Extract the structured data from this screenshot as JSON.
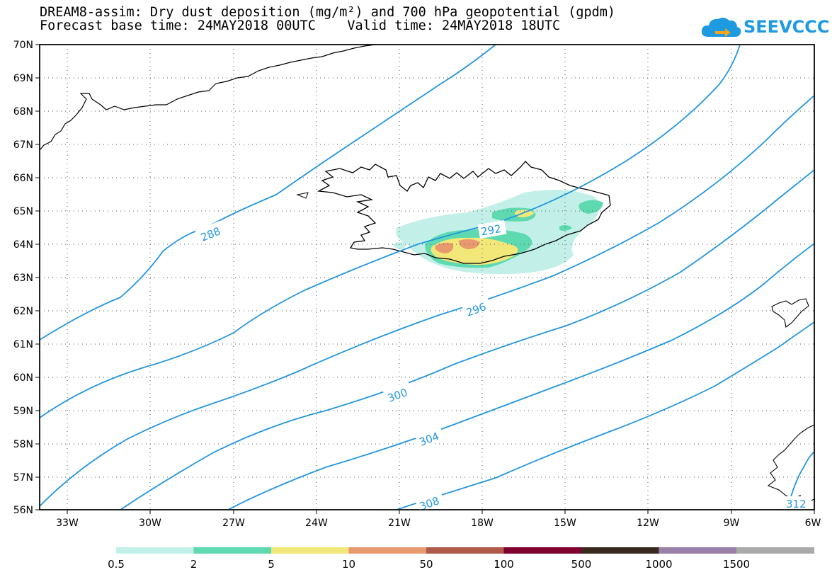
{
  "title_line1": "DREAM8-assim: Dry dust deposition (mg/m²) and 700 hPa geopotential (gpdm)",
  "title_line2": "Forecast base time: 24MAY2018 00UTC    Valid time: 24MAY2018 18UTC",
  "logo_text": "SEEVCCC",
  "logo_icon": "cloud-arrow-icon",
  "colors": {
    "contour": "#2296e0",
    "coast": "#000000",
    "grid": "#555555"
  },
  "lat_labels": [
    "70N",
    "69N",
    "68N",
    "67N",
    "66N",
    "65N",
    "64N",
    "63N",
    "62N",
    "61N",
    "60N",
    "59N",
    "58N",
    "57N",
    "56N"
  ],
  "lon_labels": [
    "33W",
    "30W",
    "27W",
    "24W",
    "21W",
    "18W",
    "15W",
    "12W",
    "9W",
    "6W"
  ],
  "contour_labels": [
    {
      "value": "288"
    },
    {
      "value": "292"
    },
    {
      "value": "296"
    },
    {
      "value": "300"
    },
    {
      "value": "304"
    },
    {
      "value": "308"
    },
    {
      "value": "312"
    }
  ],
  "colorbar": {
    "colors": [
      "#c2f0e8",
      "#5ed9b0",
      "#f2e87a",
      "#e89a6e",
      "#b05a4a",
      "#800030",
      "#3a2a1e",
      "#9a80a8",
      "#aaaaaa"
    ],
    "labels": [
      "0.5",
      "2",
      "5",
      "10",
      "50",
      "100",
      "500",
      "1000",
      "1500"
    ]
  }
}
